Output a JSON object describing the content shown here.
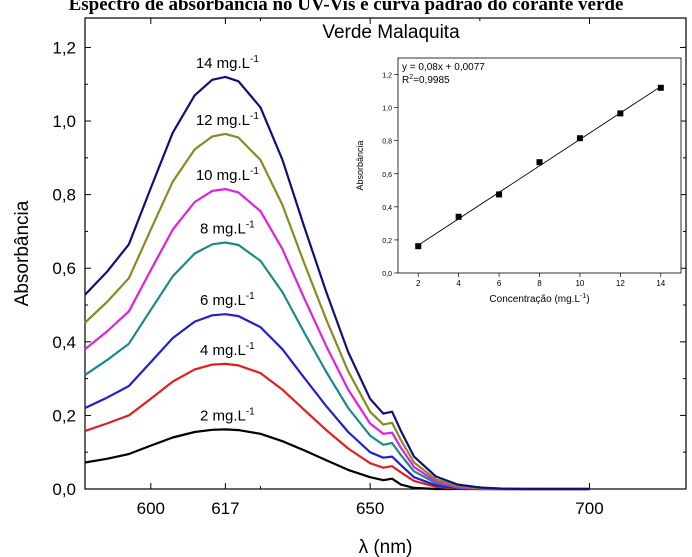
{
  "header": {
    "title": "Espectro de absorbância no UV-Vis e curva padrão do corante verde"
  },
  "chart_data": [
    {
      "type": "line",
      "title": "Verde Malaquita",
      "xlabel": "λ (nm)",
      "ylabel": "Absorbância",
      "xlim": [
        585,
        722
      ],
      "ylim": [
        0,
        1.28
      ],
      "xticks": [
        "600",
        "617",
        "650",
        "700"
      ],
      "yticks": [
        "0,0",
        "0,2",
        "0,4",
        "0,6",
        "0,8",
        "1,0",
        "1,2"
      ],
      "x": [
        585,
        590,
        595,
        600,
        605,
        610,
        614,
        617,
        620,
        625,
        630,
        635,
        640,
        645,
        650,
        653,
        655,
        657,
        660,
        665,
        670,
        675,
        680,
        685,
        690,
        695,
        700
      ],
      "series": [
        {
          "name": "2 mg.L-1",
          "color": "#000000",
          "peak": 0.162,
          "values": [
            0.072,
            0.082,
            0.095,
            0.118,
            0.14,
            0.155,
            0.161,
            0.162,
            0.16,
            0.15,
            0.13,
            0.105,
            0.078,
            0.052,
            0.032,
            0.024,
            0.028,
            0.012,
            0.003,
            0,
            0,
            0,
            0,
            0,
            0,
            0,
            0
          ]
        },
        {
          "name": "4 mg.L-1",
          "color": "#e02020",
          "peak": 0.34,
          "values": [
            0.158,
            0.178,
            0.2,
            0.245,
            0.292,
            0.325,
            0.338,
            0.34,
            0.336,
            0.315,
            0.27,
            0.215,
            0.16,
            0.11,
            0.07,
            0.058,
            0.062,
            0.045,
            0.022,
            0.006,
            0.001,
            0,
            0,
            0,
            0,
            0,
            0
          ]
        },
        {
          "name": "6 mg.L-1",
          "color": "#2020d0",
          "peak": 0.475,
          "values": [
            0.22,
            0.248,
            0.28,
            0.345,
            0.41,
            0.455,
            0.472,
            0.475,
            0.47,
            0.44,
            0.38,
            0.302,
            0.225,
            0.155,
            0.1,
            0.085,
            0.088,
            0.065,
            0.032,
            0.01,
            0.002,
            0,
            0,
            0,
            0,
            0,
            0
          ]
        },
        {
          "name": "8 mg.L-1",
          "color": "#1a8a8a",
          "peak": 0.67,
          "values": [
            0.31,
            0.35,
            0.395,
            0.487,
            0.578,
            0.64,
            0.665,
            0.67,
            0.663,
            0.62,
            0.535,
            0.425,
            0.318,
            0.22,
            0.145,
            0.12,
            0.125,
            0.092,
            0.048,
            0.016,
            0.004,
            0.001,
            0,
            0,
            0,
            0,
            0
          ]
        },
        {
          "name": "10 mg.L-1",
          "color": "#e020e0",
          "peak": 0.815,
          "values": [
            0.38,
            0.428,
            0.483,
            0.595,
            0.705,
            0.78,
            0.81,
            0.815,
            0.806,
            0.755,
            0.652,
            0.518,
            0.388,
            0.27,
            0.178,
            0.15,
            0.153,
            0.112,
            0.06,
            0.02,
            0.005,
            0.001,
            0,
            0,
            0,
            0,
            0
          ]
        },
        {
          "name": "12 mg.L-1",
          "color": "#8a8a20",
          "peak": 0.965,
          "values": [
            0.452,
            0.508,
            0.573,
            0.705,
            0.835,
            0.923,
            0.958,
            0.965,
            0.955,
            0.894,
            0.772,
            0.613,
            0.46,
            0.32,
            0.21,
            0.175,
            0.18,
            0.133,
            0.072,
            0.026,
            0.008,
            0.002,
            0.001,
            0,
            0,
            0,
            0
          ]
        },
        {
          "name": "14 mg.L-1",
          "color": "#10107a",
          "peak": 1.12,
          "values": [
            0.528,
            0.59,
            0.665,
            0.818,
            0.968,
            1.07,
            1.112,
            1.12,
            1.108,
            1.037,
            0.895,
            0.712,
            0.535,
            0.372,
            0.245,
            0.205,
            0.21,
            0.158,
            0.088,
            0.034,
            0.012,
            0.004,
            0.001,
            0,
            0,
            0,
            0
          ]
        }
      ]
    },
    {
      "type": "scatter",
      "equation": "y = 0,08x + 0,0077",
      "r2": "R2=0,9985",
      "xlabel": "Concentração (mg.L-1)",
      "ylabel": "Absorbância",
      "xlim": [
        1,
        15
      ],
      "ylim": [
        0,
        1.3
      ],
      "xticks": [
        "2",
        "4",
        "6",
        "8",
        "10",
        "12",
        "14"
      ],
      "yticks": [
        "0,0",
        "0,2",
        "0,4",
        "0,6",
        "0,8",
        "1,0",
        "1,2"
      ],
      "x": [
        2,
        4,
        6,
        8,
        10,
        12,
        14
      ],
      "y": [
        0.162,
        0.34,
        0.475,
        0.67,
        0.815,
        0.965,
        1.12
      ],
      "fit": {
        "slope": 0.08,
        "intercept": 0.0077
      }
    }
  ]
}
